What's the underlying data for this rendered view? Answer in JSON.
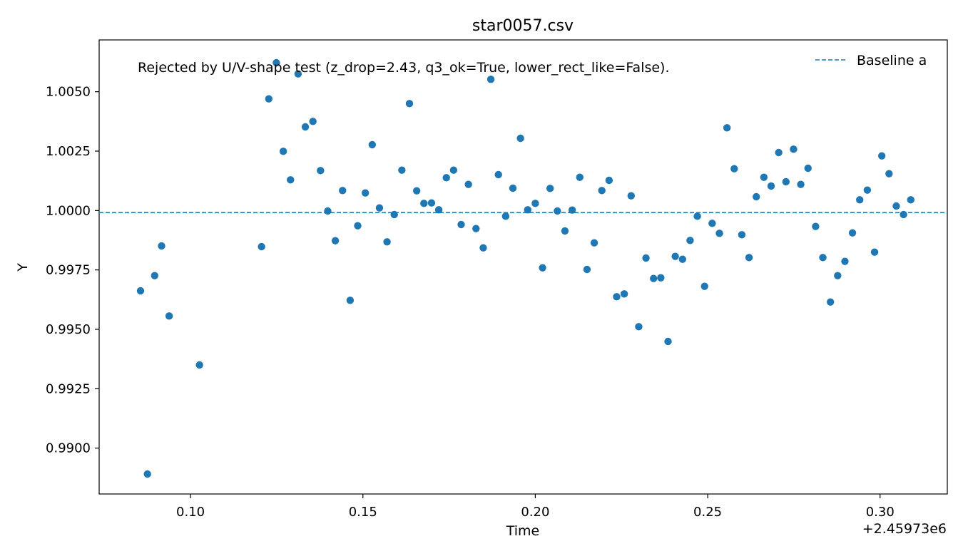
{
  "chart_data": {
    "type": "scatter",
    "title": "star0057.csv",
    "xlabel": "Time",
    "ylabel": "Y",
    "x_offset_label": "+2.45973e6",
    "annotation": "Rejected by U/V-shape test (z_drop=2.43, q3_ok=True, lower_rect_like=False).",
    "xlim": [
      0.0735,
      0.3195
    ],
    "ylim": [
      0.98807,
      1.00718
    ],
    "xticks": [
      0.1,
      0.15,
      0.2,
      0.25,
      0.3
    ],
    "xtick_labels": [
      "0.10",
      "0.15",
      "0.20",
      "0.25",
      "0.30"
    ],
    "yticks": [
      0.99,
      0.9925,
      0.995,
      0.9975,
      1.0,
      1.0025,
      1.005
    ],
    "ytick_labels": [
      "0.9900",
      "0.9925",
      "0.9950",
      "0.9975",
      "1.0000",
      "1.0025",
      "1.0050"
    ],
    "grid": false,
    "legend": {
      "placement": "top-right",
      "entries": [
        {
          "name": "Baseline a",
          "style": "dashed-line"
        }
      ]
    },
    "baseline": {
      "name": "Baseline a",
      "value": 0.99991,
      "color": "#1f77b4"
    },
    "series": [
      {
        "color": "#1f77b4",
        "points": [
          [
            0.0855,
            0.99662
          ],
          [
            0.0875,
            0.98891
          ],
          [
            0.0896,
            0.99726
          ],
          [
            0.0916,
            0.99851
          ],
          [
            0.0938,
            0.99556
          ],
          [
            0.1026,
            0.9935
          ],
          [
            0.1206,
            0.99848
          ],
          [
            0.1227,
            1.0047
          ],
          [
            0.1249,
            1.00622
          ],
          [
            0.1269,
            1.00249
          ],
          [
            0.129,
            1.00129
          ],
          [
            0.1312,
            1.00575
          ],
          [
            0.1333,
            1.00352
          ],
          [
            0.1355,
            1.00375
          ],
          [
            0.1377,
            1.00168
          ],
          [
            0.1398,
            0.99998
          ],
          [
            0.142,
            0.99873
          ],
          [
            0.1441,
            1.00084
          ],
          [
            0.1463,
            0.99622
          ],
          [
            0.1485,
            0.99936
          ],
          [
            0.1507,
            1.00074
          ],
          [
            0.1527,
            1.00277
          ],
          [
            0.1548,
            1.00011
          ],
          [
            0.157,
            0.99868
          ],
          [
            0.1591,
            0.99983
          ],
          [
            0.1613,
            1.0017
          ],
          [
            0.1635,
            1.0045
          ],
          [
            0.1656,
            1.00083
          ],
          [
            0.1677,
            1.0003
          ],
          [
            0.1699,
            1.00032
          ],
          [
            0.172,
            1.00003
          ],
          [
            0.1742,
            1.00138
          ],
          [
            0.1763,
            1.0017
          ],
          [
            0.1785,
            0.99941
          ],
          [
            0.1806,
            1.0011
          ],
          [
            0.1828,
            0.99924
          ],
          [
            0.1849,
            0.99843
          ],
          [
            0.1871,
            1.00552
          ],
          [
            0.1893,
            1.00151
          ],
          [
            0.1914,
            0.99976
          ],
          [
            0.1935,
            1.00094
          ],
          [
            0.1957,
            1.00304
          ],
          [
            0.1978,
            1.00003
          ],
          [
            0.2,
            1.0003
          ],
          [
            0.2021,
            0.99759
          ],
          [
            0.2043,
            1.00093
          ],
          [
            0.2064,
            0.99998
          ],
          [
            0.2086,
            0.99914
          ],
          [
            0.2107,
            1.00002
          ],
          [
            0.2129,
            1.0014
          ],
          [
            0.215,
            0.99752
          ],
          [
            0.2171,
            0.99864
          ],
          [
            0.2193,
            1.00084
          ],
          [
            0.2214,
            1.00127
          ],
          [
            0.2236,
            0.99637
          ],
          [
            0.2258,
            0.99649
          ],
          [
            0.2278,
            1.00062
          ],
          [
            0.23,
            0.99511
          ],
          [
            0.2321,
            0.998
          ],
          [
            0.2343,
            0.99714
          ],
          [
            0.2364,
            0.99717
          ],
          [
            0.2385,
            0.99449
          ],
          [
            0.2406,
            0.99807
          ],
          [
            0.2427,
            0.99795
          ],
          [
            0.2449,
            0.99874
          ],
          [
            0.247,
            0.99976
          ],
          [
            0.2491,
            0.99681
          ],
          [
            0.2513,
            0.99946
          ],
          [
            0.2534,
            0.99904
          ],
          [
            0.2556,
            1.00348
          ],
          [
            0.2577,
            1.00176
          ],
          [
            0.2599,
            0.99898
          ],
          [
            0.262,
            0.99802
          ],
          [
            0.2641,
            1.00058
          ],
          [
            0.2663,
            1.0014
          ],
          [
            0.2684,
            1.00103
          ],
          [
            0.2706,
            1.00244
          ],
          [
            0.2727,
            1.00121
          ],
          [
            0.2749,
            1.00258
          ],
          [
            0.277,
            1.0011
          ],
          [
            0.2791,
            1.00178
          ],
          [
            0.2813,
            0.99933
          ],
          [
            0.2834,
            0.99802
          ],
          [
            0.2856,
            0.99615
          ],
          [
            0.2877,
            0.99726
          ],
          [
            0.2898,
            0.99786
          ],
          [
            0.292,
            0.99906
          ],
          [
            0.2941,
            1.00045
          ],
          [
            0.2963,
            1.00086
          ],
          [
            0.2984,
            0.99825
          ],
          [
            0.3005,
            1.0023
          ],
          [
            0.3026,
            1.00155
          ],
          [
            0.3047,
            1.00019
          ],
          [
            0.3068,
            0.99983
          ],
          [
            0.3089,
            1.00045
          ]
        ]
      }
    ]
  }
}
